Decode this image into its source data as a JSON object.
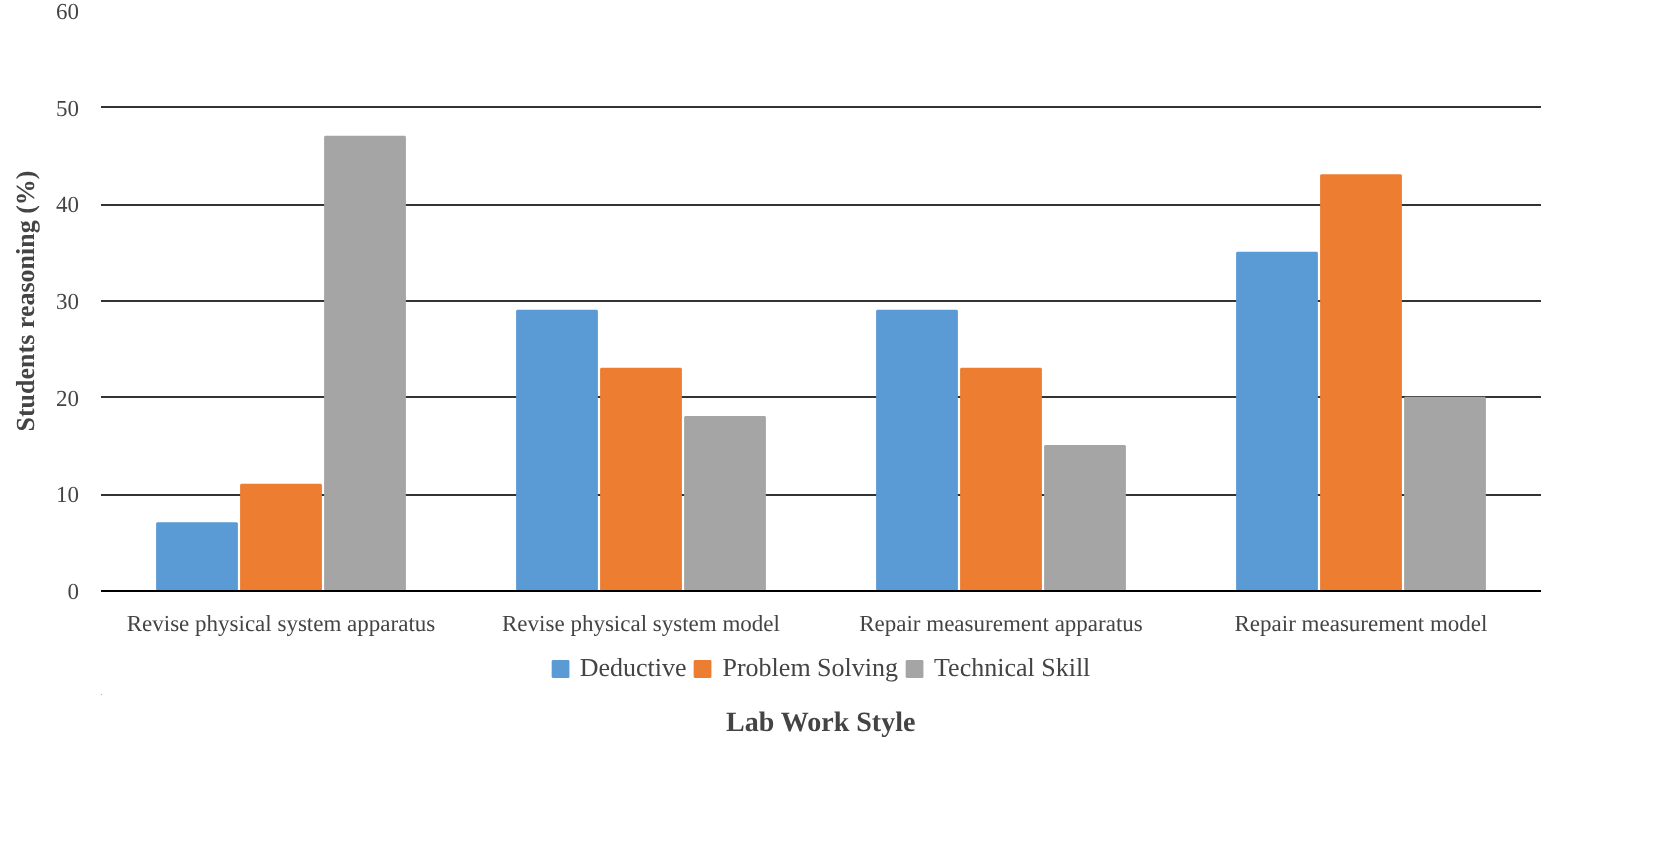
{
  "chart_data": {
    "type": "bar",
    "xlabel": "Lab Work Style",
    "ylabel": "Students reasoning (%)",
    "categories": [
      "Revise physical system apparatus",
      "Revise physical system model",
      "Repair measurement apparatus",
      "Repair measurement model"
    ],
    "series": [
      {
        "name": "Deductive",
        "color": "#5b9bd5",
        "values": [
          7,
          29,
          29,
          35
        ]
      },
      {
        "name": "Problem Solving",
        "color": "#ed7d31",
        "values": [
          11,
          23,
          23,
          43
        ]
      },
      {
        "name": "Technical Skill",
        "color": "#a5a5a5",
        "values": [
          47,
          18,
          15,
          20
        ]
      }
    ],
    "ylim": [
      0,
      60
    ],
    "yticks": [
      0,
      10,
      20,
      30,
      40,
      50,
      60
    ],
    "grid": "y",
    "legend": "bottom"
  }
}
